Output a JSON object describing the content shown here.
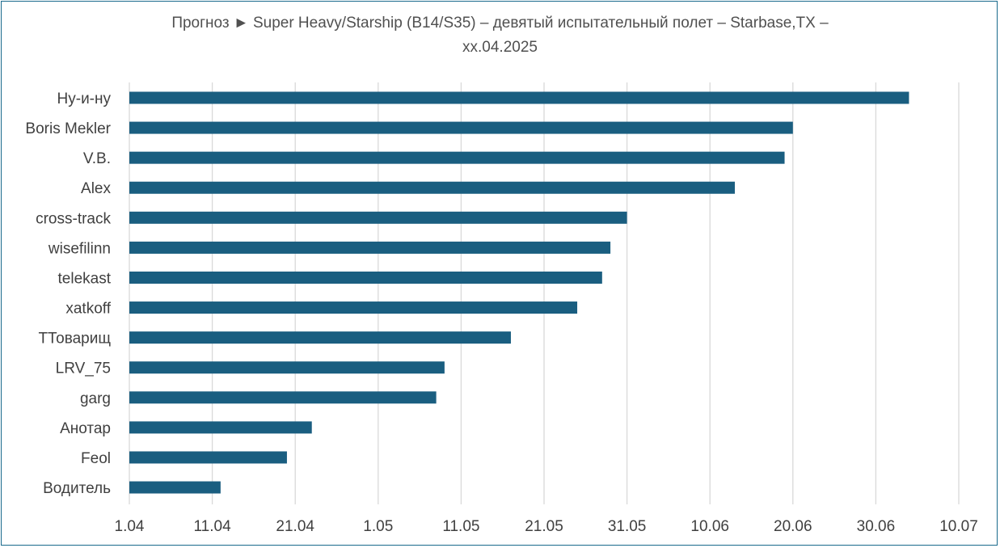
{
  "chart_data": {
    "type": "bar",
    "orientation": "horizontal",
    "title_line1": "Прогноз ► Super Heavy/Starship (B14/S35) – девятый испытательный полет – Starbase,TX –",
    "title_line2": "xx.04.2025",
    "categories": [
      "Ну-и-ну",
      "Boris Mekler",
      "V.B.",
      "Alex",
      "cross-track",
      "wisefilinn",
      "telekast",
      "xatkoff",
      "TТоварищ",
      "LRV_75",
      "garg",
      "Анотар",
      "Feol",
      "Водитель"
    ],
    "values": [
      "2025-07-04",
      "2025-06-20",
      "2025-06-19",
      "2025-06-13",
      "2025-05-31",
      "2025-05-29",
      "2025-05-28",
      "2025-05-25",
      "2025-05-17",
      "2025-05-09",
      "2025-05-08",
      "2025-04-23",
      "2025-04-20",
      "2025-04-12"
    ],
    "x_ticks": [
      "1.04",
      "11.04",
      "21.04",
      "1.05",
      "11.05",
      "21.05",
      "31.05",
      "10.06",
      "20.06",
      "30.06",
      "10.07"
    ],
    "xlim": [
      "2025-04-01",
      "2025-07-10"
    ],
    "grid": true,
    "legend": "none",
    "bar_color": "#1a5e80",
    "grid_color": "#d9d9d9"
  }
}
